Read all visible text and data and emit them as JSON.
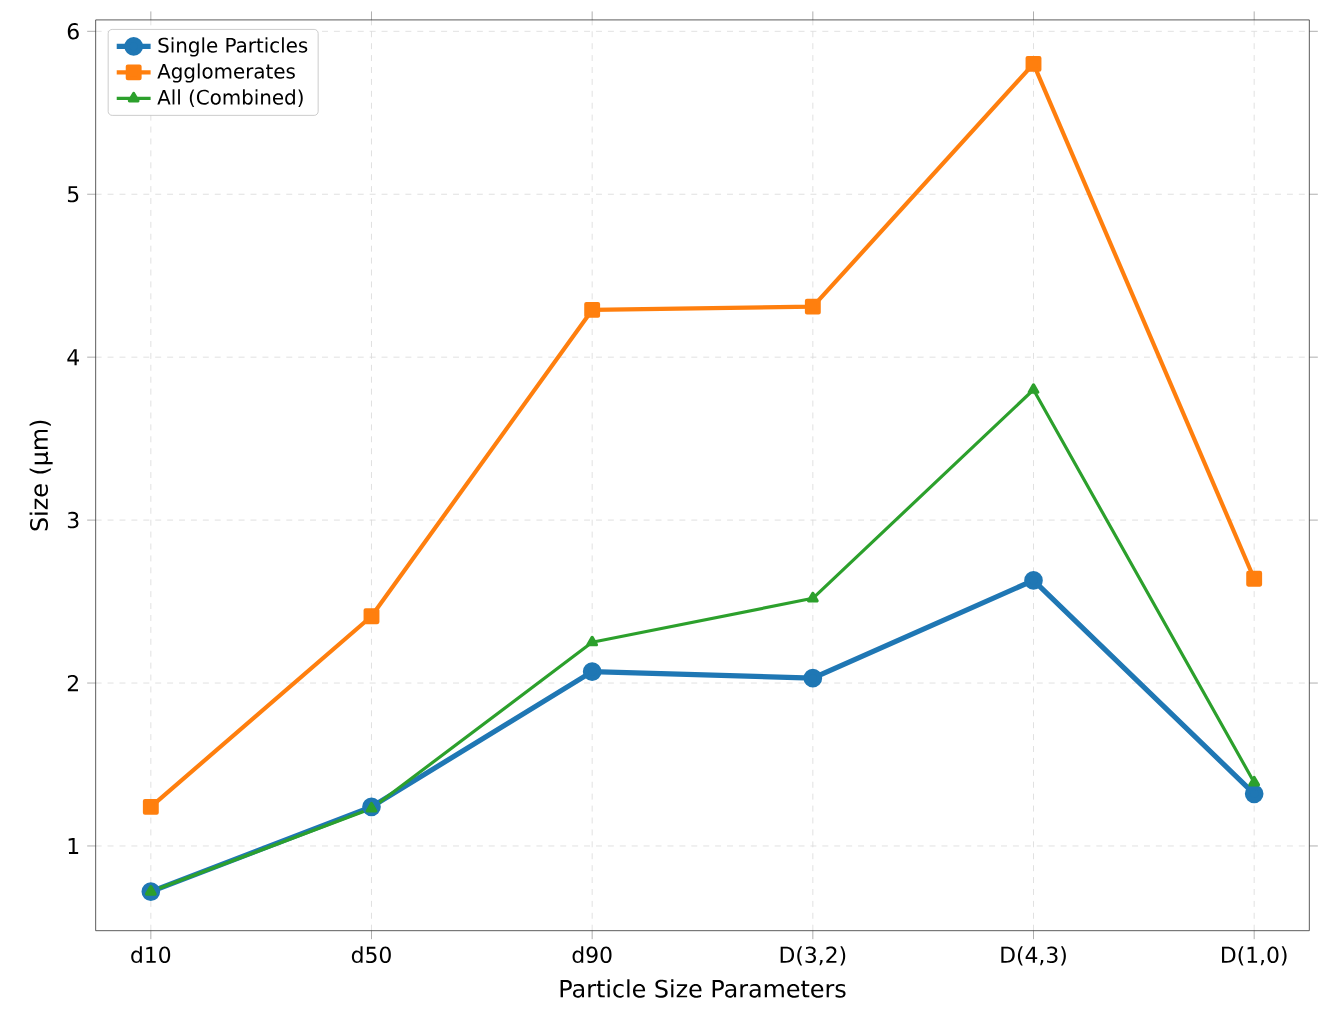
{
  "chart_data": {
    "type": "line",
    "xlabel": "Particle Size Parameters",
    "ylabel": "Size (µm)",
    "categories": [
      "d10",
      "d50",
      "d90",
      "D(3,2)",
      "D(4,3)",
      "D(1,0)"
    ],
    "series": [
      {
        "name": "Single Particles",
        "color": "#1f77b4",
        "marker": "circle",
        "values": [
          0.72,
          1.24,
          2.07,
          2.03,
          2.63,
          1.32
        ]
      },
      {
        "name": "Agglomerates",
        "color": "#ff7f0e",
        "marker": "square",
        "values": [
          1.24,
          2.41,
          4.29,
          4.31,
          5.8,
          2.64
        ]
      },
      {
        "name": "All (Combined)",
        "color": "#2ca02c",
        "marker": "triangle",
        "values": [
          0.72,
          1.23,
          2.25,
          2.52,
          3.8,
          1.39
        ]
      }
    ],
    "ylim": [
      0.48,
      6.07
    ],
    "yticks": [
      1,
      2,
      3,
      4,
      5,
      6
    ],
    "grid": true,
    "legend": "top left",
    "line_style": "solid"
  }
}
